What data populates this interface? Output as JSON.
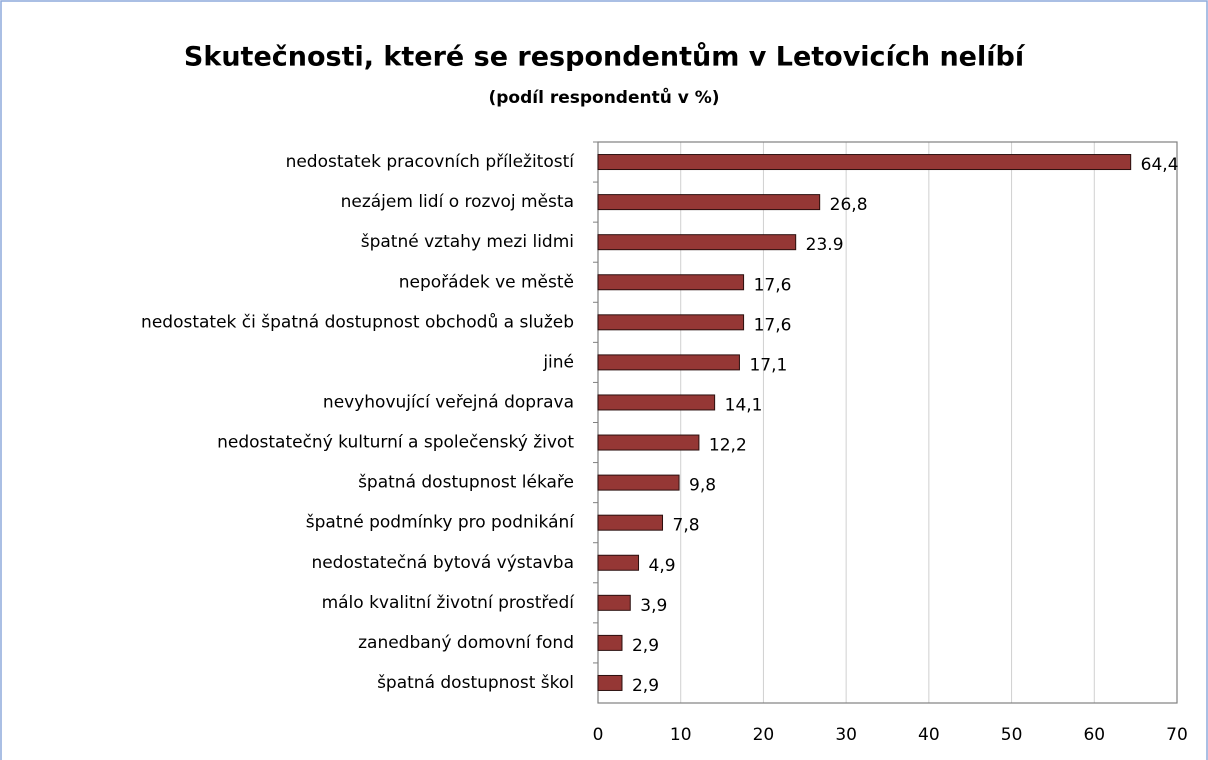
{
  "chart_data": {
    "type": "hbar",
    "title": "Skutečnosti, které se respondentům v Letovicích nelíbí",
    "subtitle": "(podíl respondentů v %)",
    "categories": [
      "nedostatek pracovních příležitostí",
      "nezájem lidí o rozvoj města",
      "špatné vztahy mezi lidmi",
      "nepořádek ve městě",
      "nedostatek či špatná dostupnost obchodů a služeb",
      "jiné",
      "nevyhovující veřejná doprava",
      "nedostatečný kulturní a společenský život",
      "špatná dostupnost lékaře",
      "špatné podmínky pro podnikání",
      "nedostatečná bytová výstavba",
      "málo kvalitní životní prostředí",
      "zanedbaný domovní fond",
      "špatná dostupnost škol"
    ],
    "values": [
      64.4,
      26.8,
      23.9,
      17.6,
      17.6,
      17.1,
      14.1,
      12.2,
      9.8,
      7.8,
      4.9,
      3.9,
      2.9,
      2.9
    ],
    "value_labels": [
      "64,4",
      "26,8",
      "23.9",
      "17,6",
      "17,6",
      "17,1",
      "14,1",
      "12,2",
      "9,8",
      "7,8",
      "4,9",
      "3,9",
      "2,9",
      "2,9"
    ],
    "color": "#953735",
    "xlim": [
      0,
      70
    ],
    "xticks": [
      0,
      10,
      20,
      30,
      40,
      50,
      60,
      70
    ],
    "grid": true
  }
}
